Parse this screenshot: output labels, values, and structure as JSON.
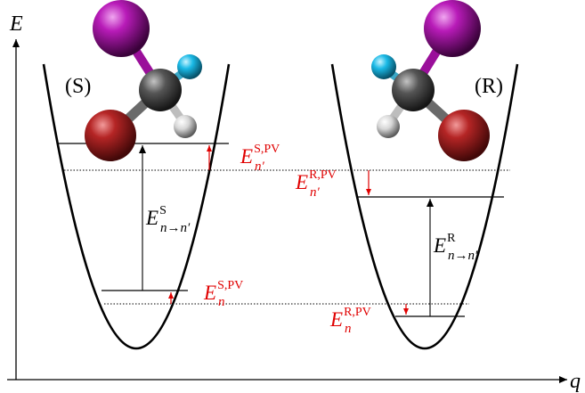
{
  "axes": {
    "y_label": "E",
    "x_label": "q"
  },
  "wells": {
    "left_label": "(S)",
    "right_label": "(R)"
  },
  "labels": {
    "left_upper_pv": {
      "base": "E",
      "sub": "n′",
      "sup": "S,PV"
    },
    "left_lower_pv": {
      "base": "E",
      "sub": "n",
      "sup": "S,PV"
    },
    "left_transition": {
      "base": "E",
      "sub": "n→n′",
      "sup": "S"
    },
    "right_upper_pv": {
      "base": "E",
      "sub": "n′",
      "sup": "R,PV"
    },
    "right_lower_pv": {
      "base": "E",
      "sub": "n",
      "sup": "R,PV"
    },
    "right_transition": {
      "base": "E",
      "sub": "n→n′",
      "sup": "R"
    }
  },
  "colors": {
    "pv_shift": "#e00000",
    "iodine": "#9a0f9a",
    "bromine": "#a31a1a",
    "fluorine": "#1ab9e6",
    "carbon": "#4a4a4a",
    "hydrogen": "#dcdcdc"
  }
}
